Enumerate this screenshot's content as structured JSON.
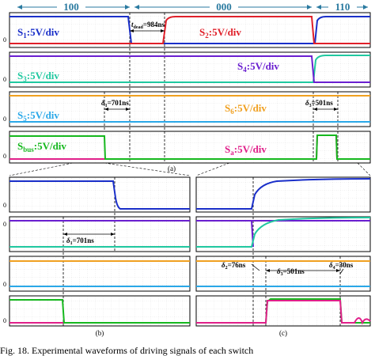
{
  "states": [
    "100",
    "000",
    "110"
  ],
  "panel_a": {
    "label": "(a)",
    "dead_time": "t",
    "dead_time_sub": "dead",
    "dead_time_value": "=984ns",
    "rows": [
      {
        "left": {
          "name": "S",
          "sub": "1",
          "unit": ":5V/div",
          "color": "#1a2fc9"
        },
        "right": {
          "name": "S",
          "sub": "2",
          "unit": ":5V/div",
          "color": "#e0202a"
        }
      },
      {
        "left": {
          "name": "S",
          "sub": "3",
          "unit": ":5V/div",
          "color": "#20c8a0"
        },
        "right": {
          "name": "S",
          "sub": "4",
          "unit": ":5V/div",
          "color": "#6a1fd0"
        }
      },
      {
        "left": {
          "name": "S",
          "sub": "5",
          "unit": ":5V/div",
          "color": "#2aa8e8"
        },
        "right": {
          "name": "S",
          "sub": "6",
          "unit": ":5V/div",
          "color": "#f0a020"
        }
      },
      {
        "left": {
          "name": "S",
          "sub": "bus",
          "unit": ":5V/div",
          "color": "#16b81e"
        },
        "right": {
          "name": "S",
          "sub": "a",
          "unit": ":5V/div",
          "color": "#e0208a"
        }
      }
    ],
    "delta1": {
      "sym": "δ",
      "sub": "1",
      "val": "=701ns"
    },
    "delta3": {
      "sym": "δ",
      "sub": "3",
      "val": "=501ns"
    }
  },
  "panel_b": {
    "label": "(b)",
    "delta1": {
      "sym": "δ",
      "sub": "1",
      "val": "=701ns"
    }
  },
  "panel_c": {
    "label": "(c)",
    "delta2": {
      "sym": "δ",
      "sub": "2",
      "val": "=76ns"
    },
    "delta3": {
      "sym": "δ",
      "sub": "3",
      "val": "=501ns"
    },
    "delta4": {
      "sym": "δ",
      "sub": "4",
      "val": "=30ns"
    }
  },
  "zero_marker": "0",
  "caption": "Fig. 18.   Experimental waveforms of driving signals of each switch"
}
